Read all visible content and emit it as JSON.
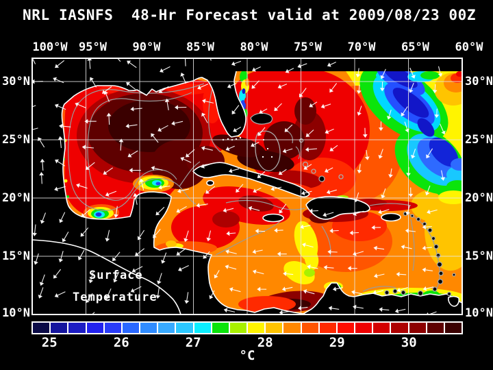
{
  "title": "NRL IASNFS  48-Hr Forecast valid at 2009/08/23 00Z",
  "map_label": {
    "line1": "Surface",
    "line2": "Temperature"
  },
  "axes": {
    "lon_labels": [
      "100°W",
      "95°W",
      "90°W",
      "85°W",
      "80°W",
      "75°W",
      "70°W",
      "65°W",
      "60°W"
    ],
    "lat_labels_left": [
      "30°N",
      "25°N",
      "20°N",
      "15°N",
      "10°N"
    ],
    "lat_labels_right": [
      "30°N",
      "25°N",
      "20°N",
      "15°N",
      "10°N"
    ]
  },
  "colorbar": {
    "unit": "°C",
    "tick_labels": [
      "25",
      "26",
      "27",
      "28",
      "29",
      "30"
    ],
    "tick_values": [
      25,
      26,
      27,
      28,
      29,
      30
    ],
    "value_range": [
      24.75,
      30.75
    ],
    "cell_step_c": 0.25,
    "cell_colors": [
      "#0a0a46",
      "#15159e",
      "#1d1dc4",
      "#2222ee",
      "#2a3cf8",
      "#2a68ff",
      "#2f8cff",
      "#38aaff",
      "#2cc8ff",
      "#0ceeff",
      "#0be40b",
      "#a8f000",
      "#fff400",
      "#ffc400",
      "#ff8800",
      "#ff5500",
      "#ff2a00",
      "#ff0d00",
      "#ef0000",
      "#d40000",
      "#ad0000",
      "#8c0000",
      "#5e0000",
      "#3a0000"
    ]
  },
  "overlay_colors": {
    "coastline": "#ffffff",
    "bathymetry_contours": "#9a9a9a",
    "grid": "#e8e8e8",
    "wind_arrows": "#ffffff",
    "land": "#000000"
  },
  "chart_data": {
    "type": "heatmap",
    "variable": "sea surface temperature",
    "unit": "°C",
    "scale_min": 24.75,
    "scale_max": 30.75,
    "scale_step": 0.25,
    "lon_range_deg_w": [
      100,
      60
    ],
    "lat_range_deg_n": [
      10,
      32
    ],
    "grid_interval_deg": 5,
    "features": [
      {
        "region": "Gulf of Mexico interior",
        "sst_c": "30.25-30.75"
      },
      {
        "region": "Gulf of Mexico coastal rim",
        "sst_c": "29-30"
      },
      {
        "region": "Bay of Campeche upwelling spot",
        "sst_c": "25.5-28"
      },
      {
        "region": "Campeche Bank upwelling streak NW of Yucatan",
        "sst_c": "26-28"
      },
      {
        "region": "Straits of Florida / Bahama banks",
        "sst_c": "30-30.75"
      },
      {
        "region": "Caribbean Sea",
        "sst_c": "28.5-29.5"
      },
      {
        "region": "Dark warm patch off Colombia coast",
        "sst_c": "30.5"
      },
      {
        "region": "Venezuela coastal upwelling band",
        "sst_c": "25.5-28"
      },
      {
        "region": "Atlantic cold tongue 60-68W / 22-31N",
        "sst_c": "25-26.5"
      },
      {
        "region": "Atlantic east of Lesser Antilles",
        "sst_c": "28-28.5"
      },
      {
        "region": "Florida east coast cold band",
        "sst_c": "26.5-28"
      }
    ],
    "overlays": [
      "white wind direction arrows",
      "gray bathymetry contours",
      "white coastlines",
      "5-degree white lat/lon grid"
    ]
  }
}
